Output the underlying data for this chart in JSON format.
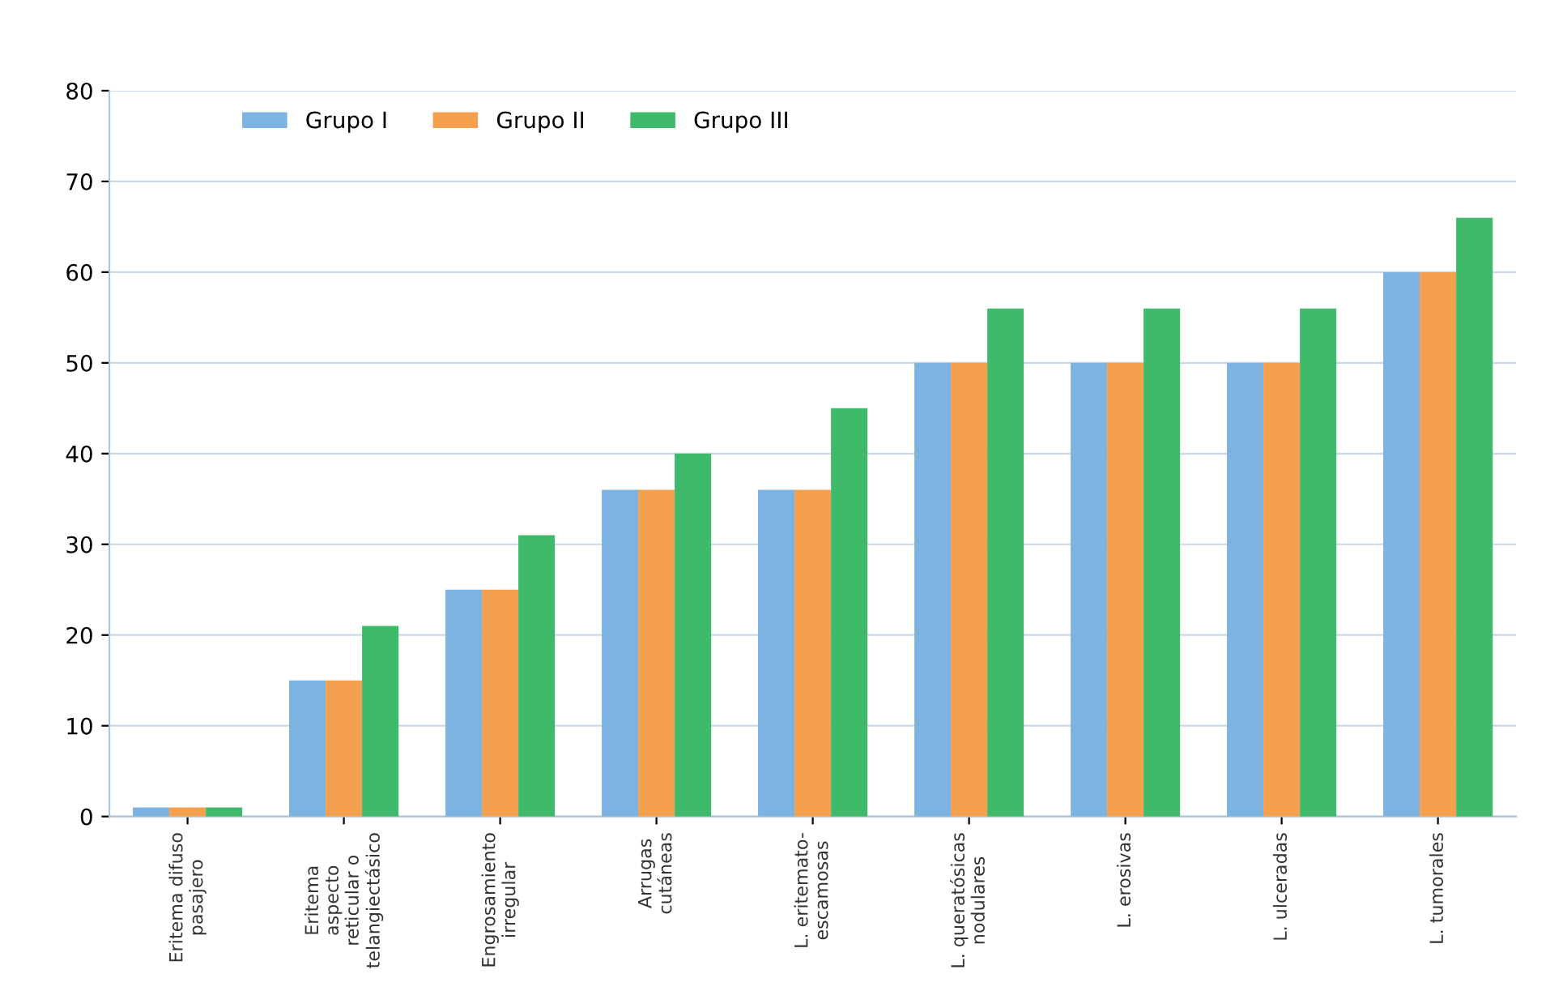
{
  "chart_data": {
    "type": "bar",
    "categories": [
      "Eritema difuso\npasajero",
      "Eritema\naspecto\nreticular o\ntelangiectásico",
      "Engrosamiento\nirregular",
      "Arrugas\ncutáneas",
      "L. eritemato-\nescamosas",
      "L. queratósicas\nnodulares",
      "L. erosivas",
      "L. ulceradas",
      "L. tumorales"
    ],
    "series": [
      {
        "name": "Grupo I",
        "color": "#7db3e0",
        "values": [
          1,
          15,
          25,
          36,
          36,
          50,
          50,
          50,
          60
        ]
      },
      {
        "name": "Grupo II",
        "color": "#f5a04e",
        "values": [
          1,
          15,
          25,
          36,
          36,
          50,
          50,
          50,
          60
        ]
      },
      {
        "name": "Grupo III",
        "color": "#3fb96a",
        "values": [
          1,
          21,
          31,
          40,
          45,
          56,
          56,
          56,
          66
        ]
      }
    ],
    "ylim": [
      0,
      80
    ],
    "yticks": [
      0,
      10,
      20,
      30,
      40,
      50,
      60,
      70,
      80
    ],
    "grid": "y",
    "legend": "top left"
  }
}
